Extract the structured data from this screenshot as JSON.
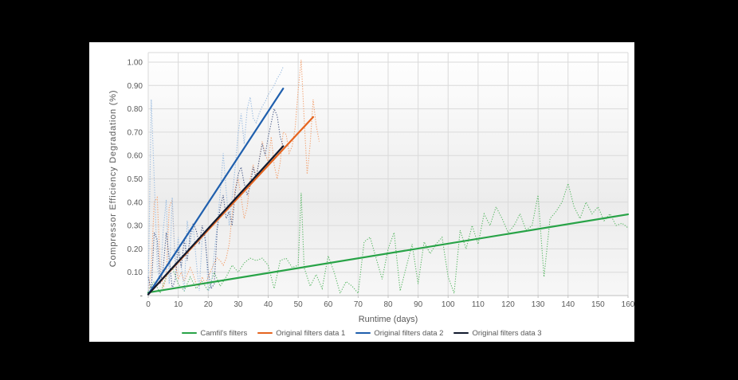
{
  "page": {
    "background_color": "#000000",
    "panel_background_color": "#ffffff"
  },
  "chart_data": {
    "type": "line",
    "title": "",
    "xlabel": "Runtime (days)",
    "ylabel": "Compressor Efficiency Degradation (%)",
    "xlim": [
      0,
      160
    ],
    "ylim": [
      0,
      1.04
    ],
    "grid": true,
    "legend_position": "bottom",
    "x_ticks": [
      0,
      10,
      20,
      30,
      40,
      50,
      60,
      70,
      80,
      90,
      100,
      110,
      120,
      130,
      140,
      150,
      160
    ],
    "y_ticks": [
      {
        "v": 0.0,
        "label": "-"
      },
      {
        "v": 0.1,
        "label": "0.10"
      },
      {
        "v": 0.2,
        "label": "0.20"
      },
      {
        "v": 0.3,
        "label": "0.30"
      },
      {
        "v": 0.4,
        "label": "0.40"
      },
      {
        "v": 0.5,
        "label": "0.50"
      },
      {
        "v": 0.6,
        "label": "0.60"
      },
      {
        "v": 0.7,
        "label": "0.70"
      },
      {
        "v": 0.8,
        "label": "0.80"
      },
      {
        "v": 0.9,
        "label": "0.90"
      },
      {
        "v": 1.0,
        "label": "1.00"
      }
    ],
    "colors": {
      "gridline": "#dadada",
      "axis_line": "#bfbfbf",
      "tick_text": "#595959",
      "title_text": "#595959"
    },
    "series": [
      {
        "name": "Camfil's filters",
        "trend_color": "#28A347",
        "data_color": "#5FB96A",
        "trend": [
          [
            0,
            0.013
          ],
          [
            160,
            0.348
          ]
        ],
        "points": [
          [
            0,
            0.02
          ],
          [
            2,
            0.06
          ],
          [
            4,
            0.01
          ],
          [
            6,
            0.08
          ],
          [
            8,
            0.12
          ],
          [
            10,
            0.05
          ],
          [
            12,
            0.02
          ],
          [
            14,
            0.08
          ],
          [
            16,
            0.03
          ],
          [
            18,
            0.06
          ],
          [
            20,
            0.02
          ],
          [
            22,
            0.1
          ],
          [
            24,
            0.04
          ],
          [
            26,
            0.08
          ],
          [
            28,
            0.13
          ],
          [
            30,
            0.1
          ],
          [
            32,
            0.14
          ],
          [
            34,
            0.16
          ],
          [
            36,
            0.15
          ],
          [
            38,
            0.16
          ],
          [
            40,
            0.13
          ],
          [
            42,
            0.03
          ],
          [
            44,
            0.15
          ],
          [
            46,
            0.16
          ],
          [
            48,
            0.12
          ],
          [
            50,
            0.13
          ],
          [
            51,
            0.44
          ],
          [
            52,
            0.12
          ],
          [
            54,
            0.04
          ],
          [
            56,
            0.09
          ],
          [
            58,
            0.03
          ],
          [
            60,
            0.17
          ],
          [
            62,
            0.1
          ],
          [
            64,
            0.01
          ],
          [
            66,
            0.06
          ],
          [
            68,
            0.04
          ],
          [
            70,
            0.01
          ],
          [
            72,
            0.23
          ],
          [
            74,
            0.25
          ],
          [
            76,
            0.16
          ],
          [
            78,
            0.07
          ],
          [
            80,
            0.2
          ],
          [
            82,
            0.27
          ],
          [
            84,
            0.02
          ],
          [
            86,
            0.12
          ],
          [
            88,
            0.22
          ],
          [
            90,
            0.05
          ],
          [
            92,
            0.23
          ],
          [
            94,
            0.18
          ],
          [
            96,
            0.22
          ],
          [
            98,
            0.25
          ],
          [
            100,
            0.08
          ],
          [
            102,
            0.01
          ],
          [
            104,
            0.28
          ],
          [
            106,
            0.2
          ],
          [
            108,
            0.3
          ],
          [
            110,
            0.22
          ],
          [
            112,
            0.35
          ],
          [
            114,
            0.3
          ],
          [
            116,
            0.38
          ],
          [
            118,
            0.33
          ],
          [
            120,
            0.27
          ],
          [
            122,
            0.3
          ],
          [
            124,
            0.35
          ],
          [
            126,
            0.28
          ],
          [
            128,
            0.3
          ],
          [
            130,
            0.43
          ],
          [
            132,
            0.08
          ],
          [
            134,
            0.33
          ],
          [
            136,
            0.36
          ],
          [
            138,
            0.4
          ],
          [
            140,
            0.48
          ],
          [
            142,
            0.38
          ],
          [
            144,
            0.33
          ],
          [
            146,
            0.4
          ],
          [
            148,
            0.35
          ],
          [
            150,
            0.38
          ],
          [
            152,
            0.32
          ],
          [
            154,
            0.35
          ],
          [
            156,
            0.3
          ],
          [
            158,
            0.31
          ],
          [
            160,
            0.29
          ]
        ]
      },
      {
        "name": "Original filters data 1",
        "trend_color": "#E5641E",
        "data_color": "#F2A272",
        "trend": [
          [
            0,
            0.005
          ],
          [
            55,
            0.765
          ]
        ],
        "points": [
          [
            0,
            0.01
          ],
          [
            1,
            0.12
          ],
          [
            2,
            0.4
          ],
          [
            3,
            0.42
          ],
          [
            4,
            0.12
          ],
          [
            5,
            0.03
          ],
          [
            6,
            0.08
          ],
          [
            7,
            0.38
          ],
          [
            8,
            0.41
          ],
          [
            9,
            0.14
          ],
          [
            10,
            0.07
          ],
          [
            11,
            0.1
          ],
          [
            12,
            0.06
          ],
          [
            13,
            0.09
          ],
          [
            14,
            0.12
          ],
          [
            15,
            0.09
          ],
          [
            16,
            0.05
          ],
          [
            17,
            0.04
          ],
          [
            18,
            0.08
          ],
          [
            19,
            0.05
          ],
          [
            20,
            0.08
          ],
          [
            21,
            0.11
          ],
          [
            22,
            0.14
          ],
          [
            23,
            0.16
          ],
          [
            24,
            0.15
          ],
          [
            25,
            0.13
          ],
          [
            26,
            0.16
          ],
          [
            27,
            0.22
          ],
          [
            28,
            0.35
          ],
          [
            29,
            0.46
          ],
          [
            30,
            0.5
          ],
          [
            31,
            0.42
          ],
          [
            32,
            0.33
          ],
          [
            33,
            0.38
          ],
          [
            34,
            0.5
          ],
          [
            35,
            0.56
          ],
          [
            36,
            0.51
          ],
          [
            37,
            0.58
          ],
          [
            38,
            0.66
          ],
          [
            39,
            0.61
          ],
          [
            40,
            0.57
          ],
          [
            41,
            0.68
          ],
          [
            42,
            0.56
          ],
          [
            43,
            0.5
          ],
          [
            44,
            0.57
          ],
          [
            45,
            0.7
          ],
          [
            46,
            0.69
          ],
          [
            47,
            0.61
          ],
          [
            48,
            0.64
          ],
          [
            49,
            0.72
          ],
          [
            50,
            0.88
          ],
          [
            51,
            1.01
          ],
          [
            52,
            0.76
          ],
          [
            53,
            0.52
          ],
          [
            54,
            0.65
          ],
          [
            55,
            0.84
          ],
          [
            56,
            0.73
          ],
          [
            57,
            0.66
          ]
        ]
      },
      {
        "name": "Original filters data 2",
        "trend_color": "#1F5FAD",
        "data_color": "#9BBCE0",
        "trend": [
          [
            0,
            0.005
          ],
          [
            45,
            0.887
          ]
        ],
        "points": [
          [
            0,
            0.02
          ],
          [
            1,
            0.84
          ],
          [
            2,
            0.5
          ],
          [
            3,
            0.12
          ],
          [
            4,
            0.05
          ],
          [
            5,
            0.28
          ],
          [
            6,
            0.41
          ],
          [
            7,
            0.05
          ],
          [
            8,
            0.42
          ],
          [
            9,
            0.12
          ],
          [
            10,
            0.25
          ],
          [
            11,
            0.13
          ],
          [
            12,
            0.02
          ],
          [
            13,
            0.32
          ],
          [
            14,
            0.22
          ],
          [
            15,
            0.3
          ],
          [
            16,
            0.15
          ],
          [
            17,
            0.02
          ],
          [
            18,
            0.25
          ],
          [
            19,
            0.27
          ],
          [
            20,
            0.02
          ],
          [
            21,
            0.04
          ],
          [
            22,
            0.18
          ],
          [
            23,
            0.3
          ],
          [
            24,
            0.44
          ],
          [
            25,
            0.61
          ],
          [
            26,
            0.45
          ],
          [
            27,
            0.3
          ],
          [
            28,
            0.42
          ],
          [
            29,
            0.55
          ],
          [
            30,
            0.7
          ],
          [
            31,
            0.78
          ],
          [
            32,
            0.65
          ],
          [
            33,
            0.8
          ],
          [
            34,
            0.85
          ],
          [
            35,
            0.76
          ],
          [
            36,
            0.74
          ],
          [
            37,
            0.78
          ],
          [
            38,
            0.81
          ],
          [
            39,
            0.83
          ],
          [
            40,
            0.86
          ],
          [
            41,
            0.88
          ],
          [
            42,
            0.9
          ],
          [
            43,
            0.93
          ],
          [
            44,
            0.95
          ],
          [
            45,
            0.98
          ]
        ]
      },
      {
        "name": "Original filters data 3",
        "trend_color": "#111A2E",
        "data_color": "#4F608C",
        "trend": [
          [
            0,
            0.005
          ],
          [
            45,
            0.64
          ]
        ],
        "points": [
          [
            0,
            0.08
          ],
          [
            1,
            0.02
          ],
          [
            2,
            0.27
          ],
          [
            3,
            0.24
          ],
          [
            4,
            0.05
          ],
          [
            5,
            0.12
          ],
          [
            6,
            0.27
          ],
          [
            7,
            0.16
          ],
          [
            8,
            0.03
          ],
          [
            9,
            0.07
          ],
          [
            10,
            0.2
          ],
          [
            11,
            0.12
          ],
          [
            12,
            0.24
          ],
          [
            13,
            0.15
          ],
          [
            14,
            0.26
          ],
          [
            15,
            0.31
          ],
          [
            16,
            0.28
          ],
          [
            17,
            0.22
          ],
          [
            18,
            0.3
          ],
          [
            19,
            0.24
          ],
          [
            20,
            0.1
          ],
          [
            21,
            0.03
          ],
          [
            22,
            0.05
          ],
          [
            23,
            0.28
          ],
          [
            24,
            0.38
          ],
          [
            25,
            0.43
          ],
          [
            26,
            0.33
          ],
          [
            27,
            0.36
          ],
          [
            28,
            0.3
          ],
          [
            29,
            0.44
          ],
          [
            30,
            0.52
          ],
          [
            31,
            0.55
          ],
          [
            32,
            0.48
          ],
          [
            33,
            0.43
          ],
          [
            34,
            0.47
          ],
          [
            35,
            0.55
          ],
          [
            36,
            0.5
          ],
          [
            37,
            0.58
          ],
          [
            38,
            0.65
          ],
          [
            39,
            0.6
          ],
          [
            40,
            0.68
          ],
          [
            41,
            0.74
          ],
          [
            42,
            0.8
          ],
          [
            43,
            0.77
          ],
          [
            44,
            0.68
          ],
          [
            45,
            0.64
          ]
        ]
      }
    ]
  }
}
